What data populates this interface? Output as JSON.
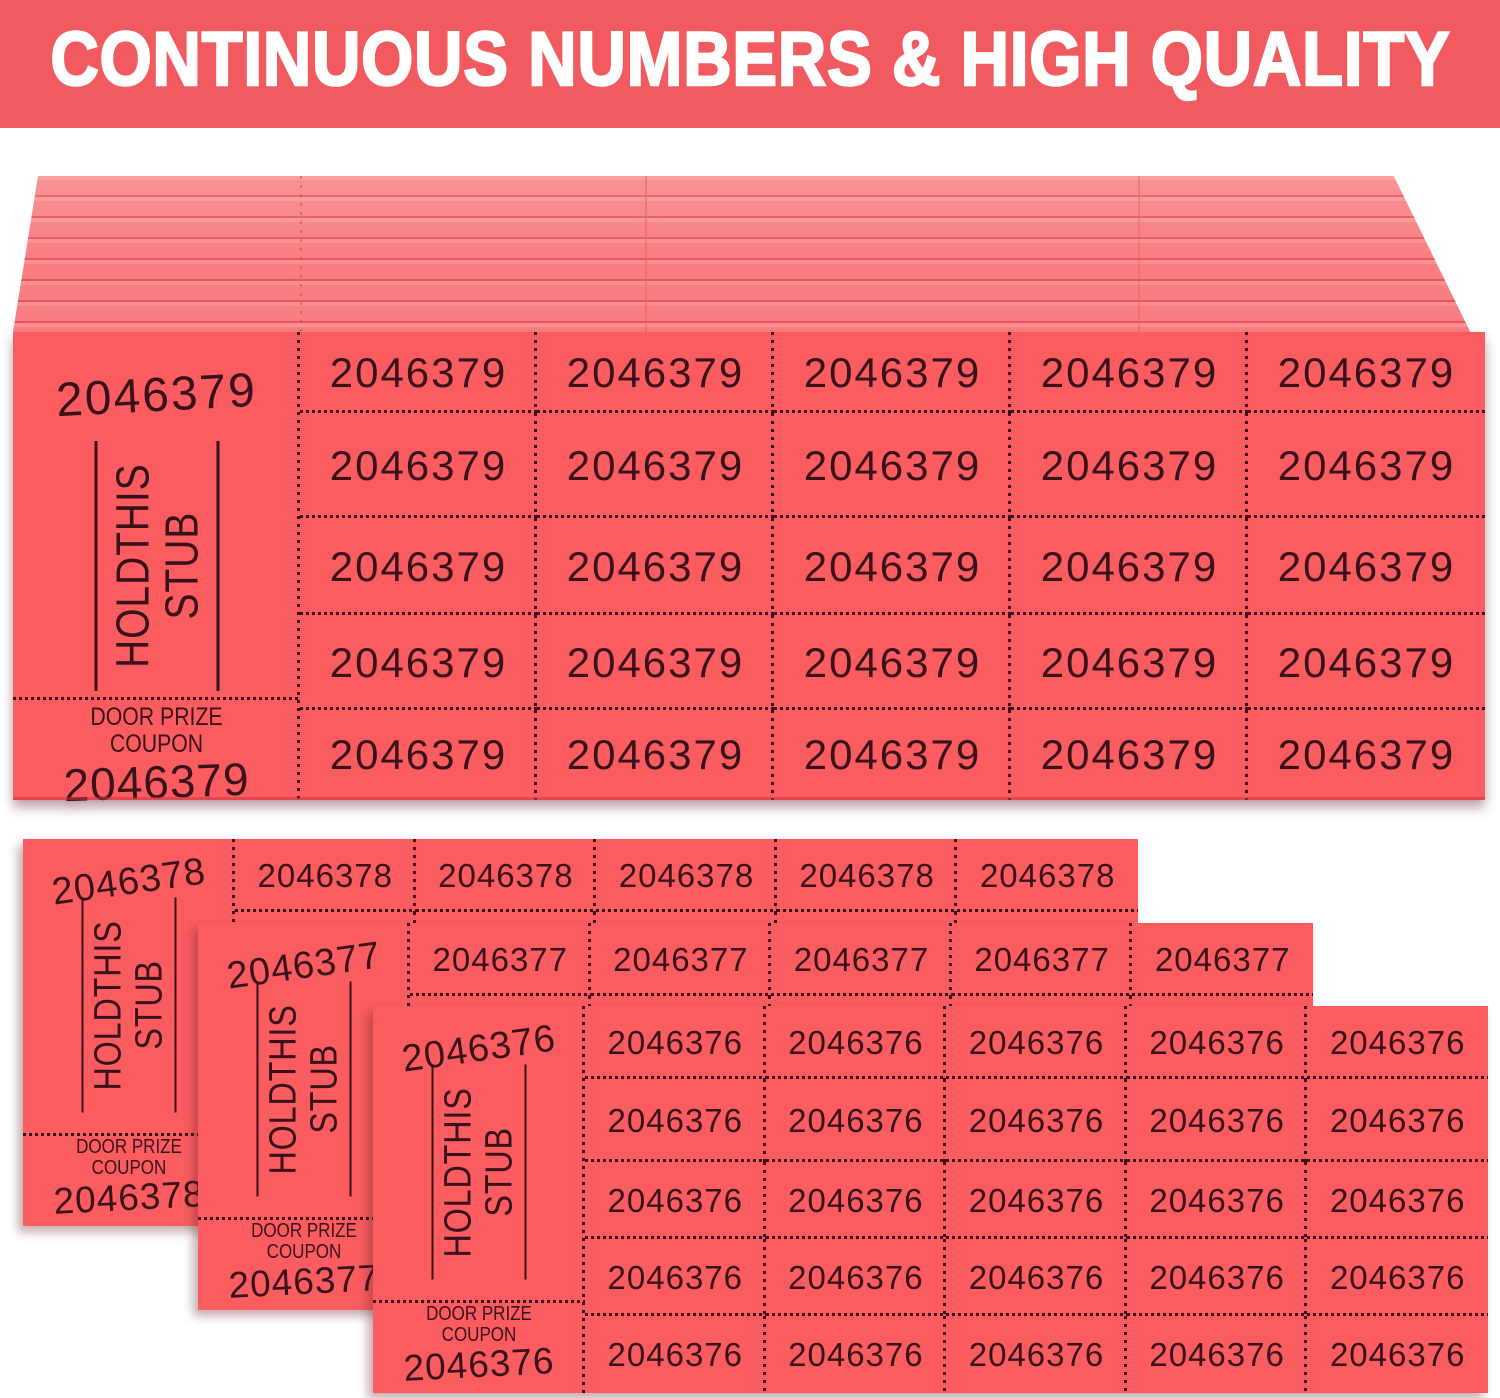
{
  "banner": {
    "text": "CONTINUOUS NUMBERS & HIGH QUALITY"
  },
  "stub_labels": {
    "hold_line1": "HOLDTHIS",
    "hold_line2": "STUB",
    "coupon_line1": "DOOR PRIZE",
    "coupon_line2": "COUPON"
  },
  "tickets": [
    {
      "role": "stack-front-sheet",
      "number": "2046379"
    },
    {
      "role": "single-ticket-back",
      "number": "2046378"
    },
    {
      "role": "single-ticket-middle",
      "number": "2046377"
    },
    {
      "role": "single-ticket-front",
      "number": "2046376"
    }
  ],
  "grid": {
    "rows": 5,
    "cols": 5
  },
  "colors": {
    "banner_bg": "#f15a5f",
    "banner_text": "#ffffff",
    "ticket_face": "#fa5c60",
    "ink": "#38111a"
  }
}
